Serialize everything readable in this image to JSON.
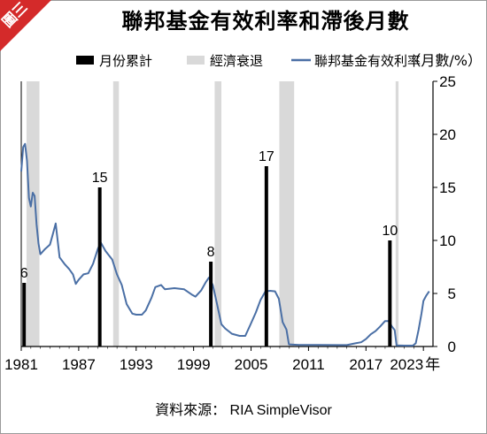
{
  "header": {
    "badge": "圖三",
    "title": "聯邦基金有效利率和滯後月數"
  },
  "source": "資料來源： RIA SimpleVisor",
  "colors": {
    "badge": "#d42a2a",
    "lag_bar": "#000000",
    "recession": "#d9d9d9",
    "rate_line": "#4a6fa5",
    "axis": "#000000"
  },
  "chart_data": {
    "type": "bar+line",
    "legend": {
      "placement": "top",
      "items": [
        {
          "key": "lag",
          "label": "月份累計",
          "marker": "bar"
        },
        {
          "key": "recession",
          "label": "經濟衰退",
          "marker": "band"
        },
        {
          "key": "rate",
          "label": "聯邦基金有效利率",
          "marker": "line"
        }
      ],
      "unit": "（月數/%）"
    },
    "x_axis": {
      "ticks": [
        "1981",
        "1987",
        "1993",
        "1999",
        "2005",
        "2011",
        "2017",
        "2023"
      ],
      "unit": "年",
      "range": [
        1981,
        2024
      ]
    },
    "y_axis": {
      "side": "right",
      "ticks": [
        0,
        5,
        10,
        15,
        20,
        25
      ],
      "range": [
        0,
        25
      ]
    },
    "recessions": [
      [
        1981.55,
        1982.9
      ],
      [
        1990.6,
        1991.2
      ],
      [
        2001.2,
        2001.9
      ],
      [
        2007.95,
        2009.5
      ],
      [
        2020.1,
        2020.4
      ]
    ],
    "lag_bars": [
      {
        "x": 1981.3,
        "value": 6,
        "label": "6"
      },
      {
        "x": 1989.2,
        "value": 15,
        "label": "15"
      },
      {
        "x": 2000.8,
        "value": 8,
        "label": "8"
      },
      {
        "x": 2006.6,
        "value": 17,
        "label": "17"
      },
      {
        "x": 2019.5,
        "value": 10,
        "label": "10"
      }
    ],
    "series": [
      {
        "key": "rate",
        "name": "聯邦基金有效利率",
        "points": [
          [
            1981.0,
            16.5
          ],
          [
            1981.2,
            18.8
          ],
          [
            1981.4,
            19.1
          ],
          [
            1981.6,
            17.5
          ],
          [
            1981.8,
            14.0
          ],
          [
            1982.0,
            13.2
          ],
          [
            1982.2,
            14.5
          ],
          [
            1982.4,
            14.2
          ],
          [
            1982.6,
            11.5
          ],
          [
            1982.8,
            9.7
          ],
          [
            1983.0,
            8.7
          ],
          [
            1983.5,
            9.2
          ],
          [
            1984.0,
            9.6
          ],
          [
            1984.3,
            10.6
          ],
          [
            1984.6,
            11.6
          ],
          [
            1984.8,
            10.0
          ],
          [
            1985.0,
            8.4
          ],
          [
            1985.5,
            7.8
          ],
          [
            1986.0,
            7.3
          ],
          [
            1986.4,
            6.8
          ],
          [
            1986.7,
            5.9
          ],
          [
            1987.0,
            6.3
          ],
          [
            1987.5,
            6.8
          ],
          [
            1988.0,
            6.9
          ],
          [
            1988.5,
            7.8
          ],
          [
            1989.0,
            9.2
          ],
          [
            1989.3,
            9.8
          ],
          [
            1989.8,
            9.0
          ],
          [
            1990.5,
            8.2
          ],
          [
            1991.0,
            6.8
          ],
          [
            1991.5,
            5.8
          ],
          [
            1992.0,
            4.0
          ],
          [
            1992.6,
            3.1
          ],
          [
            1993.0,
            3.0
          ],
          [
            1993.6,
            3.0
          ],
          [
            1994.0,
            3.4
          ],
          [
            1994.6,
            4.6
          ],
          [
            1995.0,
            5.6
          ],
          [
            1995.6,
            5.8
          ],
          [
            1996.0,
            5.4
          ],
          [
            1997.0,
            5.5
          ],
          [
            1998.0,
            5.4
          ],
          [
            1998.8,
            4.9
          ],
          [
            1999.2,
            4.7
          ],
          [
            1999.8,
            5.3
          ],
          [
            2000.3,
            6.1
          ],
          [
            2000.6,
            6.5
          ],
          [
            2001.0,
            5.8
          ],
          [
            2001.4,
            4.2
          ],
          [
            2001.9,
            2.1
          ],
          [
            2002.3,
            1.7
          ],
          [
            2003.0,
            1.2
          ],
          [
            2003.8,
            1.0
          ],
          [
            2004.4,
            1.0
          ],
          [
            2004.9,
            2.0
          ],
          [
            2005.5,
            3.2
          ],
          [
            2006.0,
            4.4
          ],
          [
            2006.5,
            5.2
          ],
          [
            2007.0,
            5.25
          ],
          [
            2007.5,
            5.2
          ],
          [
            2007.9,
            4.5
          ],
          [
            2008.3,
            2.3
          ],
          [
            2008.7,
            1.6
          ],
          [
            2008.95,
            0.2
          ],
          [
            2010.0,
            0.15
          ],
          [
            2012.0,
            0.15
          ],
          [
            2015.0,
            0.13
          ],
          [
            2015.9,
            0.3
          ],
          [
            2016.5,
            0.4
          ],
          [
            2017.0,
            0.7
          ],
          [
            2017.5,
            1.15
          ],
          [
            2018.0,
            1.45
          ],
          [
            2018.5,
            1.9
          ],
          [
            2019.0,
            2.4
          ],
          [
            2019.4,
            2.4
          ],
          [
            2019.7,
            1.9
          ],
          [
            2020.0,
            1.55
          ],
          [
            2020.2,
            0.1
          ],
          [
            2021.0,
            0.08
          ],
          [
            2021.9,
            0.08
          ],
          [
            2022.2,
            0.3
          ],
          [
            2022.5,
            1.6
          ],
          [
            2022.8,
            3.1
          ],
          [
            2023.0,
            4.3
          ],
          [
            2023.3,
            4.8
          ],
          [
            2023.6,
            5.2
          ]
        ]
      }
    ]
  }
}
